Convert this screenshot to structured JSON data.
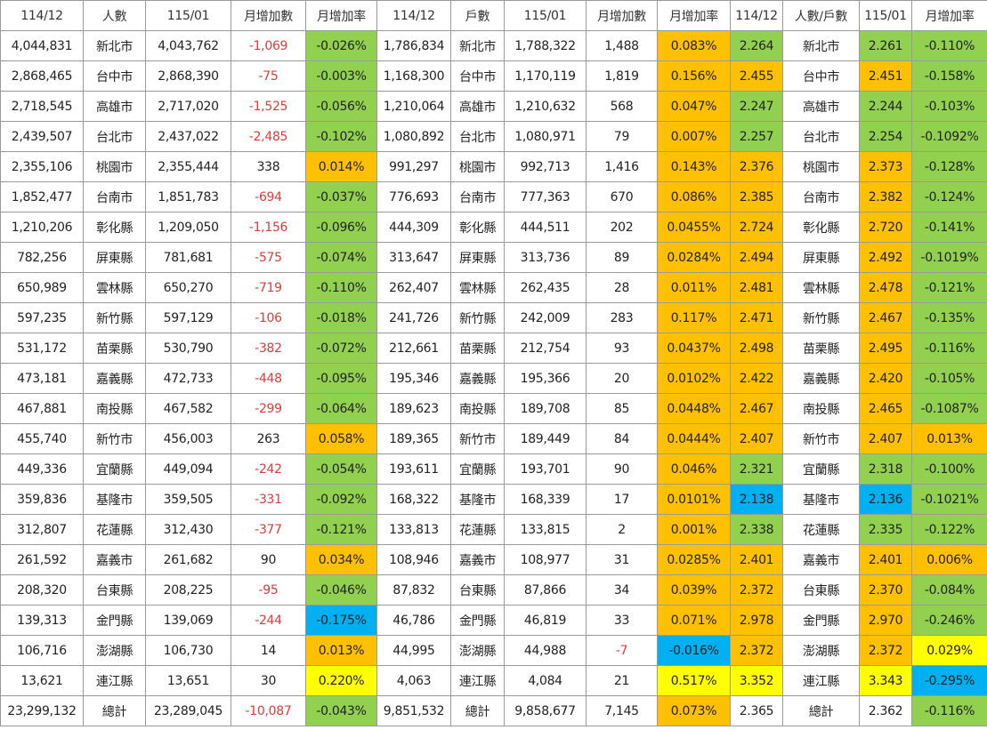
{
  "colors": {
    "green": "#92d050",
    "orange": "#ffc000",
    "blue": "#00b0f0",
    "yellow": "#ffff00",
    "negative_text": "#e03b3b"
  },
  "headers": [
    "114/12",
    "人數",
    "115/01",
    "月增加數",
    "月增加率",
    "114/12",
    "戶數",
    "115/01",
    "月增加數",
    "月增加率",
    "114/12",
    "人數/戶數",
    "115/01",
    "月增加率"
  ],
  "rows": [
    {
      "pop_prev": "4,044,831",
      "pop_region": "新北市",
      "pop_cur": "4,043,762",
      "pop_delta": "-1,069",
      "pop_rate": "-0.026%",
      "hh_prev": "1,786,834",
      "hh_region": "新北市",
      "hh_cur": "1,788,322",
      "hh_delta": "1,488",
      "hh_rate": "0.083%",
      "pph_prev": "2.264",
      "pph_region": "新北市",
      "pph_cur": "2.261",
      "pph_rate": "-0.110%"
    },
    {
      "pop_prev": "2,868,465",
      "pop_region": "台中市",
      "pop_cur": "2,868,390",
      "pop_delta": "-75",
      "pop_rate": "-0.003%",
      "hh_prev": "1,168,300",
      "hh_region": "台中市",
      "hh_cur": "1,170,119",
      "hh_delta": "1,819",
      "hh_rate": "0.156%",
      "pph_prev": "2.455",
      "pph_region": "台中市",
      "pph_cur": "2.451",
      "pph_rate": "-0.158%"
    },
    {
      "pop_prev": "2,718,545",
      "pop_region": "高雄市",
      "pop_cur": "2,717,020",
      "pop_delta": "-1,525",
      "pop_rate": "-0.056%",
      "hh_prev": "1,210,064",
      "hh_region": "高雄市",
      "hh_cur": "1,210,632",
      "hh_delta": "568",
      "hh_rate": "0.047%",
      "pph_prev": "2.247",
      "pph_region": "高雄市",
      "pph_cur": "2.244",
      "pph_rate": "-0.103%"
    },
    {
      "pop_prev": "2,439,507",
      "pop_region": "台北市",
      "pop_cur": "2,437,022",
      "pop_delta": "-2,485",
      "pop_rate": "-0.102%",
      "hh_prev": "1,080,892",
      "hh_region": "台北市",
      "hh_cur": "1,080,971",
      "hh_delta": "79",
      "hh_rate": "0.007%",
      "pph_prev": "2.257",
      "pph_region": "台北市",
      "pph_cur": "2.254",
      "pph_rate": "-0.1092%"
    },
    {
      "pop_prev": "2,355,106",
      "pop_region": "桃園市",
      "pop_cur": "2,355,444",
      "pop_delta": "338",
      "pop_rate": "0.014%",
      "hh_prev": "991,297",
      "hh_region": "桃園市",
      "hh_cur": "992,713",
      "hh_delta": "1,416",
      "hh_rate": "0.143%",
      "pph_prev": "2.376",
      "pph_region": "桃園市",
      "pph_cur": "2.373",
      "pph_rate": "-0.128%"
    },
    {
      "pop_prev": "1,852,477",
      "pop_region": "台南市",
      "pop_cur": "1,851,783",
      "pop_delta": "-694",
      "pop_rate": "-0.037%",
      "hh_prev": "776,693",
      "hh_region": "台南市",
      "hh_cur": "777,363",
      "hh_delta": "670",
      "hh_rate": "0.086%",
      "pph_prev": "2.385",
      "pph_region": "台南市",
      "pph_cur": "2.382",
      "pph_rate": "-0.124%"
    },
    {
      "pop_prev": "1,210,206",
      "pop_region": "彰化縣",
      "pop_cur": "1,209,050",
      "pop_delta": "-1,156",
      "pop_rate": "-0.096%",
      "hh_prev": "444,309",
      "hh_region": "彰化縣",
      "hh_cur": "444,511",
      "hh_delta": "202",
      "hh_rate": "0.0455%",
      "pph_prev": "2.724",
      "pph_region": "彰化縣",
      "pph_cur": "2.720",
      "pph_rate": "-0.141%"
    },
    {
      "pop_prev": "782,256",
      "pop_region": "屏東縣",
      "pop_cur": "781,681",
      "pop_delta": "-575",
      "pop_rate": "-0.074%",
      "hh_prev": "313,647",
      "hh_region": "屏東縣",
      "hh_cur": "313,736",
      "hh_delta": "89",
      "hh_rate": "0.0284%",
      "pph_prev": "2.494",
      "pph_region": "屏東縣",
      "pph_cur": "2.492",
      "pph_rate": "-0.1019%"
    },
    {
      "pop_prev": "650,989",
      "pop_region": "雲林縣",
      "pop_cur": "650,270",
      "pop_delta": "-719",
      "pop_rate": "-0.110%",
      "hh_prev": "262,407",
      "hh_region": "雲林縣",
      "hh_cur": "262,435",
      "hh_delta": "28",
      "hh_rate": "0.011%",
      "pph_prev": "2.481",
      "pph_region": "雲林縣",
      "pph_cur": "2.478",
      "pph_rate": "-0.121%"
    },
    {
      "pop_prev": "597,235",
      "pop_region": "新竹縣",
      "pop_cur": "597,129",
      "pop_delta": "-106",
      "pop_rate": "-0.018%",
      "hh_prev": "241,726",
      "hh_region": "新竹縣",
      "hh_cur": "242,009",
      "hh_delta": "283",
      "hh_rate": "0.117%",
      "pph_prev": "2.471",
      "pph_region": "新竹縣",
      "pph_cur": "2.467",
      "pph_rate": "-0.135%"
    },
    {
      "pop_prev": "531,172",
      "pop_region": "苗栗縣",
      "pop_cur": "530,790",
      "pop_delta": "-382",
      "pop_rate": "-0.072%",
      "hh_prev": "212,661",
      "hh_region": "苗栗縣",
      "hh_cur": "212,754",
      "hh_delta": "93",
      "hh_rate": "0.0437%",
      "pph_prev": "2.498",
      "pph_region": "苗栗縣",
      "pph_cur": "2.495",
      "pph_rate": "-0.116%"
    },
    {
      "pop_prev": "473,181",
      "pop_region": "嘉義縣",
      "pop_cur": "472,733",
      "pop_delta": "-448",
      "pop_rate": "-0.095%",
      "hh_prev": "195,346",
      "hh_region": "嘉義縣",
      "hh_cur": "195,366",
      "hh_delta": "20",
      "hh_rate": "0.0102%",
      "pph_prev": "2.422",
      "pph_region": "嘉義縣",
      "pph_cur": "2.420",
      "pph_rate": "-0.105%"
    },
    {
      "pop_prev": "467,881",
      "pop_region": "南投縣",
      "pop_cur": "467,582",
      "pop_delta": "-299",
      "pop_rate": "-0.064%",
      "hh_prev": "189,623",
      "hh_region": "南投縣",
      "hh_cur": "189,708",
      "hh_delta": "85",
      "hh_rate": "0.0448%",
      "pph_prev": "2.467",
      "pph_region": "南投縣",
      "pph_cur": "2.465",
      "pph_rate": "-0.1087%"
    },
    {
      "pop_prev": "455,740",
      "pop_region": "新竹市",
      "pop_cur": "456,003",
      "pop_delta": "263",
      "pop_rate": "0.058%",
      "hh_prev": "189,365",
      "hh_region": "新竹市",
      "hh_cur": "189,449",
      "hh_delta": "84",
      "hh_rate": "0.0444%",
      "pph_prev": "2.407",
      "pph_region": "新竹市",
      "pph_cur": "2.407",
      "pph_rate": "0.013%"
    },
    {
      "pop_prev": "449,336",
      "pop_region": "宜蘭縣",
      "pop_cur": "449,094",
      "pop_delta": "-242",
      "pop_rate": "-0.054%",
      "hh_prev": "193,611",
      "hh_region": "宜蘭縣",
      "hh_cur": "193,701",
      "hh_delta": "90",
      "hh_rate": "0.046%",
      "pph_prev": "2.321",
      "pph_region": "宜蘭縣",
      "pph_cur": "2.318",
      "pph_rate": "-0.100%"
    },
    {
      "pop_prev": "359,836",
      "pop_region": "基隆市",
      "pop_cur": "359,505",
      "pop_delta": "-331",
      "pop_rate": "-0.092%",
      "hh_prev": "168,322",
      "hh_region": "基隆市",
      "hh_cur": "168,339",
      "hh_delta": "17",
      "hh_rate": "0.0101%",
      "pph_prev": "2.138",
      "pph_region": "基隆市",
      "pph_cur": "2.136",
      "pph_rate": "-0.1021%"
    },
    {
      "pop_prev": "312,807",
      "pop_region": "花蓮縣",
      "pop_cur": "312,430",
      "pop_delta": "-377",
      "pop_rate": "-0.121%",
      "hh_prev": "133,813",
      "hh_region": "花蓮縣",
      "hh_cur": "133,815",
      "hh_delta": "2",
      "hh_rate": "0.001%",
      "pph_prev": "2.338",
      "pph_region": "花蓮縣",
      "pph_cur": "2.335",
      "pph_rate": "-0.122%"
    },
    {
      "pop_prev": "261,592",
      "pop_region": "嘉義市",
      "pop_cur": "261,682",
      "pop_delta": "90",
      "pop_rate": "0.034%",
      "hh_prev": "108,946",
      "hh_region": "嘉義市",
      "hh_cur": "108,977",
      "hh_delta": "31",
      "hh_rate": "0.0285%",
      "pph_prev": "2.401",
      "pph_region": "嘉義市",
      "pph_cur": "2.401",
      "pph_rate": "0.006%"
    },
    {
      "pop_prev": "208,320",
      "pop_region": "台東縣",
      "pop_cur": "208,225",
      "pop_delta": "-95",
      "pop_rate": "-0.046%",
      "hh_prev": "87,832",
      "hh_region": "台東縣",
      "hh_cur": "87,866",
      "hh_delta": "34",
      "hh_rate": "0.039%",
      "pph_prev": "2.372",
      "pph_region": "台東縣",
      "pph_cur": "2.370",
      "pph_rate": "-0.084%"
    },
    {
      "pop_prev": "139,313",
      "pop_region": "金門縣",
      "pop_cur": "139,069",
      "pop_delta": "-244",
      "pop_rate": "-0.175%",
      "hh_prev": "46,786",
      "hh_region": "金門縣",
      "hh_cur": "46,819",
      "hh_delta": "33",
      "hh_rate": "0.071%",
      "pph_prev": "2.978",
      "pph_region": "金門縣",
      "pph_cur": "2.970",
      "pph_rate": "-0.246%"
    },
    {
      "pop_prev": "106,716",
      "pop_region": "澎湖縣",
      "pop_cur": "106,730",
      "pop_delta": "14",
      "pop_rate": "0.013%",
      "hh_prev": "44,995",
      "hh_region": "澎湖縣",
      "hh_cur": "44,988",
      "hh_delta": "-7",
      "hh_rate": "-0.016%",
      "pph_prev": "2.372",
      "pph_region": "澎湖縣",
      "pph_cur": "2.372",
      "pph_rate": "0.029%"
    },
    {
      "pop_prev": "13,621",
      "pop_region": "連江縣",
      "pop_cur": "13,651",
      "pop_delta": "30",
      "pop_rate": "0.220%",
      "hh_prev": "4,063",
      "hh_region": "連江縣",
      "hh_cur": "4,084",
      "hh_delta": "21",
      "hh_rate": "0.517%",
      "pph_prev": "3.352",
      "pph_region": "連江縣",
      "pph_cur": "3.343",
      "pph_rate": "-0.295%"
    },
    {
      "pop_prev": "23,299,132",
      "pop_region": "總計",
      "pop_cur": "23,289,045",
      "pop_delta": "-10,087",
      "pop_rate": "-0.043%",
      "hh_prev": "9,851,532",
      "hh_region": "總計",
      "hh_cur": "9,858,677",
      "hh_delta": "7,145",
      "hh_rate": "0.073%",
      "pph_prev": "2.365",
      "pph_region": "總計",
      "pph_cur": "2.362",
      "pph_rate": "-0.116%"
    }
  ],
  "highlights": [
    {
      "pop_rate": "green",
      "hh_rate": "orange",
      "pph_prev": "green",
      "pph_cur": "green",
      "pph_rate": "green"
    },
    {
      "pop_rate": "green",
      "hh_rate": "orange",
      "pph_prev": "orange",
      "pph_cur": "orange",
      "pph_rate": "green"
    },
    {
      "pop_rate": "green",
      "hh_rate": "orange",
      "pph_prev": "green",
      "pph_cur": "green",
      "pph_rate": "green"
    },
    {
      "pop_rate": "green",
      "hh_rate": "orange",
      "pph_prev": "green",
      "pph_cur": "green",
      "pph_rate": "green"
    },
    {
      "pop_rate": "orange",
      "hh_rate": "orange",
      "pph_prev": "orange",
      "pph_cur": "orange",
      "pph_rate": "green"
    },
    {
      "pop_rate": "green",
      "hh_rate": "orange",
      "pph_prev": "orange",
      "pph_cur": "orange",
      "pph_rate": "green"
    },
    {
      "pop_rate": "green",
      "hh_rate": "orange",
      "pph_prev": "orange",
      "pph_cur": "orange",
      "pph_rate": "green"
    },
    {
      "pop_rate": "green",
      "hh_rate": "orange",
      "pph_prev": "orange",
      "pph_cur": "orange",
      "pph_rate": "green"
    },
    {
      "pop_rate": "green",
      "hh_rate": "orange",
      "pph_prev": "orange",
      "pph_cur": "orange",
      "pph_rate": "green"
    },
    {
      "pop_rate": "green",
      "hh_rate": "orange",
      "pph_prev": "orange",
      "pph_cur": "orange",
      "pph_rate": "green"
    },
    {
      "pop_rate": "green",
      "hh_rate": "orange",
      "pph_prev": "orange",
      "pph_cur": "orange",
      "pph_rate": "green"
    },
    {
      "pop_rate": "green",
      "hh_rate": "orange",
      "pph_prev": "orange",
      "pph_cur": "orange",
      "pph_rate": "green"
    },
    {
      "pop_rate": "green",
      "hh_rate": "orange",
      "pph_prev": "orange",
      "pph_cur": "orange",
      "pph_rate": "green"
    },
    {
      "pop_rate": "orange",
      "hh_rate": "orange",
      "pph_prev": "orange",
      "pph_cur": "orange",
      "pph_rate": "orange"
    },
    {
      "pop_rate": "green",
      "hh_rate": "orange",
      "pph_prev": "green",
      "pph_cur": "green",
      "pph_rate": "green"
    },
    {
      "pop_rate": "green",
      "hh_rate": "orange",
      "pph_prev": "blue",
      "pph_cur": "blue",
      "pph_rate": "green"
    },
    {
      "pop_rate": "green",
      "hh_rate": "orange",
      "pph_prev": "green",
      "pph_cur": "green",
      "pph_rate": "green"
    },
    {
      "pop_rate": "orange",
      "hh_rate": "orange",
      "pph_prev": "orange",
      "pph_cur": "orange",
      "pph_rate": "orange"
    },
    {
      "pop_rate": "green",
      "hh_rate": "orange",
      "pph_prev": "orange",
      "pph_cur": "orange",
      "pph_rate": "green"
    },
    {
      "pop_rate": "blue",
      "hh_rate": "orange",
      "pph_prev": "orange",
      "pph_cur": "orange",
      "pph_rate": "green"
    },
    {
      "pop_rate": "orange",
      "hh_rate": "blue",
      "pph_prev": "orange",
      "pph_cur": "orange",
      "pph_rate": "yellow"
    },
    {
      "pop_rate": "yellow",
      "hh_rate": "yellow",
      "pph_prev": "yellow",
      "pph_cur": "yellow",
      "pph_rate": "blue"
    },
    {
      "pop_rate": "green",
      "hh_rate": "orange",
      "pph_prev": "",
      "pph_cur": "",
      "pph_rate": "green"
    }
  ]
}
